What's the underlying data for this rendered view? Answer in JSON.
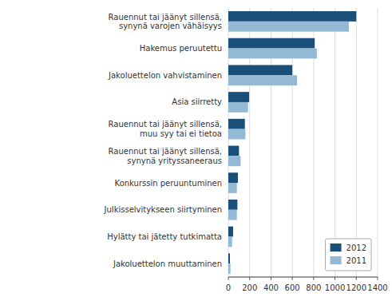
{
  "chart_data": {
    "type": "bar",
    "orientation": "horizontal",
    "categories": [
      "Rauennut tai jäänyt sillensä,\nsynynä varojen vähäisyys",
      "Hakemus peruutettu",
      "Jakoluettelon vahvistaminen",
      "Asia siirretty",
      "Rauennut tai jäänyt sillensä,\nmuu syy tai ei tietoa",
      "Rauennut tai jäänyt sillensä,\nsynynä yrityssaneeraus",
      "Konkurssin peruuntuminen",
      "Julkisselvitykseen siirtyminen",
      "Hylätty tai jätetty tutkimatta",
      "Jakoluettelon muuttaminen"
    ],
    "series": [
      {
        "name": "2012",
        "color": "#1a4f7a",
        "values": [
          1200,
          810,
          600,
          195,
          155,
          100,
          90,
          85,
          45,
          15
        ]
      },
      {
        "name": "2011",
        "color": "#93b9d4",
        "values": [
          1130,
          830,
          645,
          185,
          160,
          115,
          80,
          80,
          35,
          20
        ]
      }
    ],
    "xlim": [
      0,
      1400
    ],
    "xticks": [
      0,
      200,
      400,
      600,
      800,
      1000,
      1200,
      1400
    ],
    "grid": true,
    "legend": "lower right"
  }
}
